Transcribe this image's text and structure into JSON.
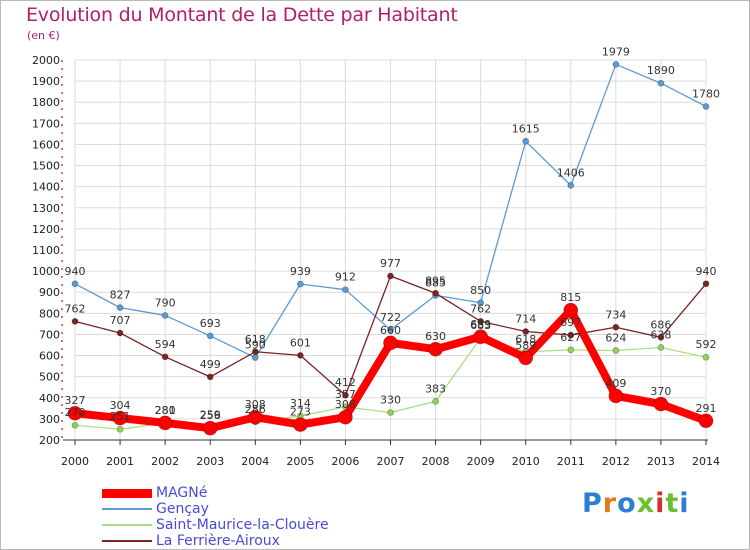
{
  "title": "Evolution du Montant de la Dette par Habitant",
  "unit": "(en €)",
  "logo": {
    "text": "Proxiti",
    "colors": [
      "#2a7fd4",
      "#e07b16",
      "#2a7fd4",
      "#6bbf2c",
      "#d4302a",
      "#6bbf2c",
      "#2a7fd4"
    ]
  },
  "colors": {
    "title": "#b0206a",
    "grid": "#dcdcdc",
    "axis": "#333333"
  },
  "chart_data": {
    "type": "line",
    "x": [
      2000,
      2001,
      2002,
      2003,
      2004,
      2005,
      2006,
      2007,
      2008,
      2009,
      2010,
      2011,
      2012,
      2013,
      2014
    ],
    "ylim": [
      200,
      2000
    ],
    "yticks": [
      200,
      300,
      400,
      500,
      600,
      700,
      800,
      900,
      1000,
      1100,
      1200,
      1300,
      1400,
      1500,
      1600,
      1700,
      1800,
      1900,
      2000
    ],
    "grid": true,
    "legend_position": "bottom-left",
    "series": [
      {
        "name": "Gençay",
        "color": "#5b9bd5",
        "width": 1.3,
        "marker": "#5b9bd5",
        "values": [
          940,
          827,
          790,
          693,
          590,
          939,
          912,
          722,
          885,
          850,
          1615,
          1406,
          1979,
          1890,
          1780
        ],
        "labels": [
          "940",
          "827",
          "790",
          "693",
          "590",
          "939",
          "912",
          "722",
          "885",
          "850",
          "1615",
          "1406",
          "1979",
          "1890",
          "1780"
        ]
      },
      {
        "name": "La Ferrière-Airoux",
        "color": "#7b2424",
        "width": 1.3,
        "marker": "#7b2424",
        "values": [
          762,
          707,
          594,
          499,
          618,
          601,
          412,
          977,
          895,
          762,
          714,
          697,
          734,
          686,
          940
        ],
        "labels": [
          "762",
          "707",
          "594",
          "499",
          "618",
          "601",
          "412",
          "977",
          "895",
          "762",
          "714",
          "697",
          "734",
          "686",
          "940"
        ]
      },
      {
        "name": "Saint-Maurice-la-Clouère",
        "color": "#a8e080",
        "width": 1.3,
        "marker": "#8fd15c",
        "values": [
          270,
          251,
          280,
          259,
          286,
          314,
          357,
          330,
          383,
          683,
          618,
          627,
          624,
          638,
          592
        ],
        "labels": [
          "270",
          "251",
          "280",
          "259",
          "286",
          "314",
          "357",
          "330",
          "383",
          "683",
          "618",
          "627",
          "624",
          "638",
          "592"
        ]
      },
      {
        "name": "MAGNé",
        "color": "#ff0000",
        "width": 8,
        "marker": "#ff0000",
        "values": [
          327,
          304,
          281,
          256,
          308,
          273,
          308,
          660,
          630,
          689,
          589,
          815,
          409,
          370,
          291
        ],
        "labels": [
          "327",
          "304",
          "281",
          "256",
          "308",
          "273",
          "308",
          "660",
          "630",
          "689",
          "589",
          "815",
          "409",
          "370",
          "291"
        ]
      }
    ],
    "legend": [
      "MAGNé",
      "Gençay",
      "Saint-Maurice-la-Clouère",
      "La Ferrière-Airoux"
    ]
  }
}
